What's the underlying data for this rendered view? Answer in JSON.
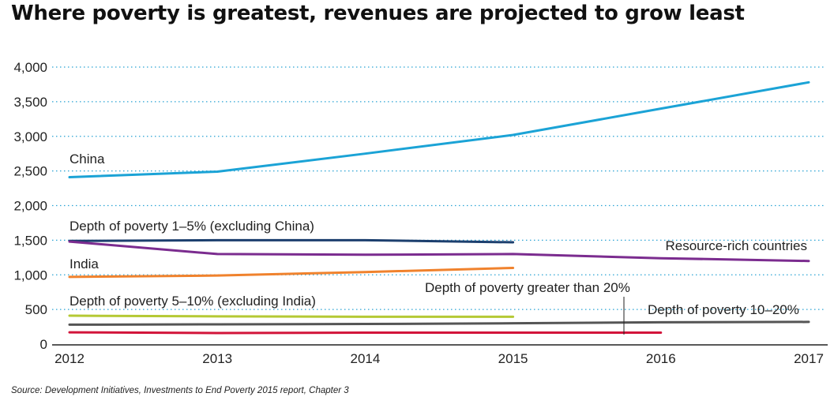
{
  "chart_data": {
    "type": "line",
    "title": "Where poverty is greatest, revenues are projected to grow least",
    "source": "Source: Development Initiatives, Investments to End Poverty 2015 report, Chapter 3",
    "x": [
      "2012",
      "2013",
      "2014",
      "2015",
      "2016",
      "2017"
    ],
    "yticks": [
      "0",
      "500",
      "1,000",
      "1,500",
      "2,000",
      "2,500",
      "3,000",
      "3,500",
      "4,000"
    ],
    "ylim": [
      0,
      4000
    ],
    "grid": true,
    "series": [
      {
        "name": "China",
        "color": "#1ba3d6",
        "values": [
          2410,
          2490,
          2750,
          3020,
          3400,
          3780
        ]
      },
      {
        "name": "Depth of poverty 1–5% (excluding China)",
        "color": "#1c3f6e",
        "values": [
          1490,
          1500,
          1500,
          1470,
          null,
          null
        ]
      },
      {
        "name": "Resource-rich countries",
        "color": "#7b2c8f",
        "values": [
          1480,
          1300,
          1290,
          1300,
          1240,
          1200
        ]
      },
      {
        "name": "India",
        "color": "#f0822d",
        "values": [
          970,
          990,
          1040,
          1100,
          null,
          null
        ]
      },
      {
        "name": "Depth of poverty 5–10% (excluding India)",
        "color": "#b5c934",
        "values": [
          410,
          400,
          395,
          395,
          null,
          null
        ]
      },
      {
        "name": "Depth of poverty 10–20%",
        "color": "#555555",
        "values": [
          280,
          285,
          290,
          300,
          315,
          320
        ]
      },
      {
        "name": "Depth of poverty greater than 20%",
        "color": "#d2143a",
        "values": [
          170,
          160,
          165,
          165,
          165,
          null
        ]
      }
    ]
  }
}
